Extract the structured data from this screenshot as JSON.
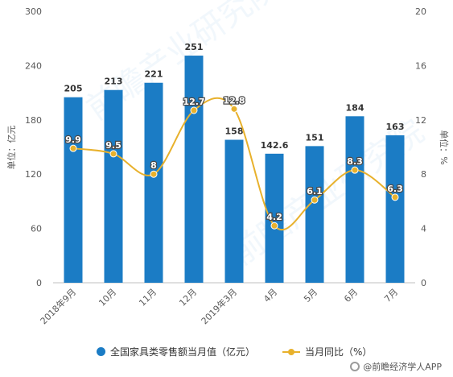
{
  "chart_data": {
    "type": "bar",
    "categories": [
      "2018年9月",
      "10月",
      "11月",
      "12月",
      "2019年3月",
      "4月",
      "5月",
      "6月",
      "7月"
    ],
    "series": [
      {
        "name": "全国家具类零售额当月值（亿元）",
        "type": "bar",
        "axis": "left",
        "color": "#1b7cc5",
        "values": [
          205,
          213,
          221,
          251,
          158,
          142.6,
          151,
          184,
          163
        ],
        "labels": [
          "205",
          "213",
          "221",
          "251",
          "158",
          "142.6",
          "151",
          "184",
          "163"
        ]
      },
      {
        "name": "当月同比（%）",
        "type": "line",
        "axis": "right",
        "color": "#e8b12c",
        "values": [
          9.9,
          9.5,
          8,
          12.7,
          12.8,
          4.2,
          6.1,
          8.3,
          6.3
        ],
        "labels": [
          "9.9",
          "9.5",
          "8",
          "12.7",
          "12.8",
          "4.2",
          "6.1",
          "8.3",
          "6.3"
        ]
      }
    ],
    "ylabel": "单位：亿元",
    "y2label": "单位：%",
    "ylim": [
      0,
      300
    ],
    "y2lim": [
      0,
      20
    ],
    "yticks": [
      "0",
      "60",
      "120",
      "180",
      "240",
      "300"
    ],
    "y2ticks": [
      "0",
      "4",
      "8",
      "12",
      "16",
      "20"
    ],
    "grid": false,
    "legend": "bottom"
  },
  "source": "@前瞻经济学人APP"
}
